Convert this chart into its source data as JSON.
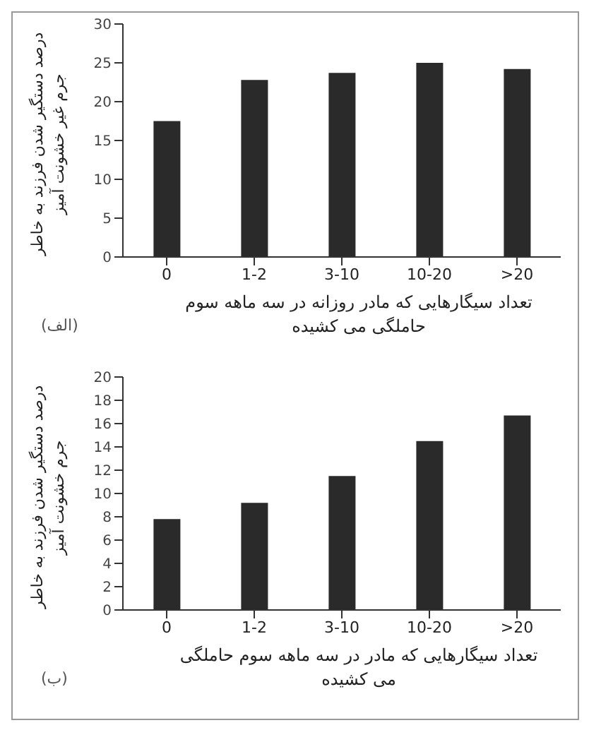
{
  "chart_data": [
    {
      "type": "bar",
      "categories": [
        "0",
        "1-2",
        "3-10",
        "10-20",
        ">20"
      ],
      "values": [
        17.5,
        22.8,
        23.7,
        25,
        24.2
      ],
      "color": "#2a2a2a",
      "ylim": [
        0,
        30
      ],
      "yticks": [
        0,
        5,
        10,
        15,
        20,
        25,
        30
      ],
      "ylabel": "درصد دستگیر شدن فرزند به خاطر جرم غیر خشونت آمیز",
      "xlabel": "تعداد سیگارهایی که مادر روزانه در سه ماهه سوم حاملگی می کشیده",
      "annotations": [
        "(الف)"
      ]
    },
    {
      "type": "bar",
      "categories": [
        "0",
        "1-2",
        "3-10",
        "10-20",
        ">20"
      ],
      "values": [
        7.8,
        9.2,
        11.5,
        14.5,
        16.7
      ],
      "color": "#2a2a2a",
      "ylim": [
        0,
        20
      ],
      "yticks": [
        0,
        2,
        4,
        6,
        8,
        10,
        12,
        14,
        16,
        18,
        20
      ],
      "ylabel": "درصد دستگیر شدن فرزند به خاطر جرم خشونت آمیز",
      "xlabel": "تعداد سیگارهایی که مادر در سه ماهه سوم حاملگی می کشیده",
      "annotations": [
        "(ب)"
      ]
    }
  ]
}
